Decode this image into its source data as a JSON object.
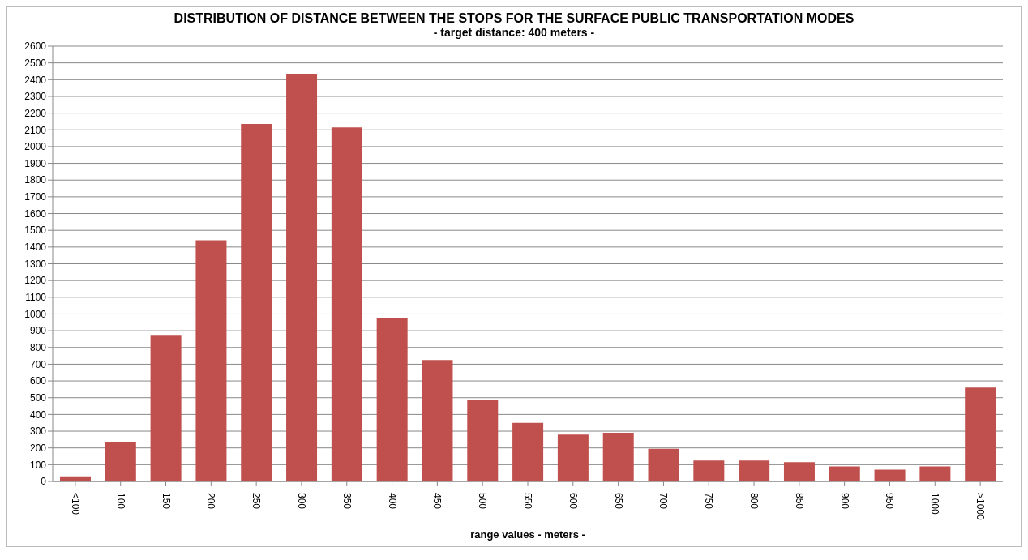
{
  "chart_data": {
    "type": "bar",
    "title": "DISTRIBUTION OF DISTANCE BETWEEN THE STOPS FOR THE SURFACE PUBLIC TRANSPORTATION MODES",
    "subtitle": "- target distance: 400 meters -",
    "xlabel": "range values  - meters  -",
    "categories": [
      "<100",
      "100",
      "150",
      "200",
      "250",
      "300",
      "350",
      "400",
      "450",
      "500",
      "550",
      "600",
      "650",
      "700",
      "750",
      "800",
      "850",
      "900",
      "950",
      "1000",
      ">1000"
    ],
    "values": [
      30,
      235,
      875,
      1440,
      2135,
      2435,
      2115,
      975,
      725,
      485,
      350,
      280,
      290,
      195,
      125,
      125,
      115,
      90,
      70,
      90,
      560
    ],
    "color": "#c0504d",
    "ylim": [
      0,
      2600
    ],
    "yticks": [
      0,
      100,
      200,
      300,
      400,
      500,
      600,
      700,
      800,
      900,
      1000,
      1100,
      1200,
      1300,
      1400,
      1500,
      1600,
      1700,
      1800,
      1900,
      2000,
      2100,
      2200,
      2300,
      2400,
      2500,
      2600
    ],
    "grid": "y"
  }
}
